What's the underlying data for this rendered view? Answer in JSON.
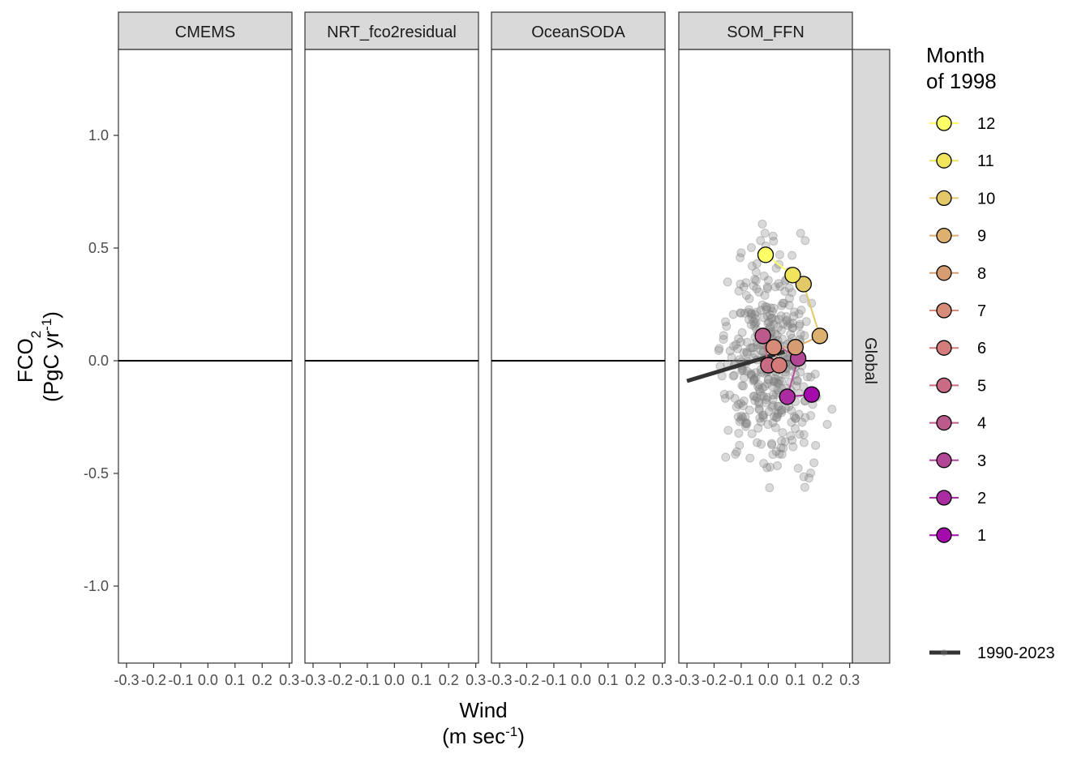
{
  "chart_data": {
    "type": "scatter",
    "facets": [
      "CMEMS",
      "NRT_fco2residual",
      "OceanSODA",
      "SOM_FFN"
    ],
    "row_strip": "Global",
    "xlabel_line1": "Wind",
    "xlabel_line2_base": "(m sec",
    "xlabel_line2_sup": "-1",
    "xlabel_line2_end": ")",
    "ylabel_base": "FCO",
    "ylabel_sub": "2",
    "ylabel_line2_base": "(PgC yr",
    "ylabel_line2_sup": "-1",
    "ylabel_line2_end": ")",
    "xlim": [
      -0.33,
      0.31
    ],
    "ylim": [
      -1.35,
      1.38
    ],
    "x_ticks": [
      -0.3,
      -0.2,
      -0.1,
      0.0,
      0.1,
      0.2,
      0.3
    ],
    "x_tick_labels": [
      "-0.3",
      "-0.2",
      "-0.1",
      "0.0",
      "0.1",
      "0.2",
      "0.3"
    ],
    "y_ticks": [
      -1.0,
      -0.5,
      0.0,
      0.5,
      1.0
    ],
    "y_tick_labels": [
      "-1.0",
      "-0.5",
      "0.0",
      "0.5",
      "1.0"
    ],
    "hline_y": 0,
    "grid": false,
    "legend_position": "right",
    "legend_title": "Month\nof 1998",
    "months": [
      {
        "label": "12",
        "x": -0.01,
        "y": 0.47,
        "color": "#ffff66"
      },
      {
        "label": "11",
        "x": 0.09,
        "y": 0.38,
        "color": "#f0e55c"
      },
      {
        "label": "10",
        "x": 0.13,
        "y": 0.34,
        "color": "#e3c867"
      },
      {
        "label": "9",
        "x": 0.19,
        "y": 0.11,
        "color": "#dcb06f"
      },
      {
        "label": "8",
        "x": 0.1,
        "y": 0.06,
        "color": "#d79d72"
      },
      {
        "label": "7",
        "x": 0.02,
        "y": 0.06,
        "color": "#d68c76"
      },
      {
        "label": "6",
        "x": 0.04,
        "y": -0.02,
        "color": "#d37c7a"
      },
      {
        "label": "5",
        "x": 0.0,
        "y": -0.02,
        "color": "#c96b82"
      },
      {
        "label": "4",
        "x": -0.02,
        "y": 0.11,
        "color": "#bd5a8c"
      },
      {
        "label": "3",
        "x": 0.11,
        "y": 0.01,
        "color": "#b24797"
      },
      {
        "label": "2",
        "x": 0.07,
        "y": -0.16,
        "color": "#ab2ba1"
      },
      {
        "label": "1",
        "x": 0.16,
        "y": -0.15,
        "color": "#a50aac"
      }
    ],
    "trend_label": "1990-2023",
    "trend_line": {
      "x": [
        -0.3,
        0.06
      ],
      "y": [
        -0.09,
        0.04
      ],
      "color": "#333333"
    },
    "background_points": {
      "n": 408,
      "x_center": 0.0,
      "y_center": 0.0,
      "x_sd": 0.085,
      "y_sd": 0.22,
      "color": "#808080"
    }
  }
}
